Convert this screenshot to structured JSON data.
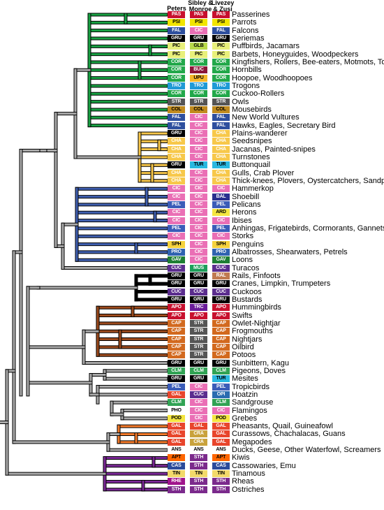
{
  "headers": [
    "Peters",
    "Sibley & Monroe",
    "Livezey & Zusi"
  ],
  "palette": {
    "PAS": [
      "#c8102e",
      "#fff"
    ],
    "PSI": [
      "#f2e500",
      "#000"
    ],
    "FAL": [
      "#2e4f9e",
      "#fff"
    ],
    "GRU": [
      "#000000",
      "#fff"
    ],
    "CIC": [
      "#ea6fb5",
      "#fff"
    ],
    "PIC": [
      "#e8f07a",
      "#000"
    ],
    "GLB": [
      "#b8d94a",
      "#000"
    ],
    "COR": [
      "#22a84a",
      "#fff"
    ],
    "BUC": [
      "#8b1538",
      "#fff"
    ],
    "UPU": [
      "#f4b72a",
      "#000"
    ],
    "TRO": [
      "#1f9ad6",
      "#fff"
    ],
    "STR": [
      "#555555",
      "#fff"
    ],
    "COL": [
      "#c08a1e",
      "#000"
    ],
    "CHA": [
      "#f7c84a",
      "#fff"
    ],
    "TUR": [
      "#29b8e0",
      "#000"
    ],
    "BAL": [
      "#2a2f8f",
      "#fff"
    ],
    "ARD": [
      "#f5e640",
      "#000"
    ],
    "SPH": [
      "#f5d23c",
      "#000"
    ],
    "PRO": [
      "#2f62b0",
      "#fff"
    ],
    "GAV": [
      "#1e7e34",
      "#fff"
    ],
    "CUC": [
      "#5b2d8e",
      "#fff"
    ],
    "MUS": [
      "#1d9e5a",
      "#fff"
    ],
    "RAL": [
      "#c07a50",
      "#fff"
    ],
    "APO": [
      "#c8102e",
      "#fff"
    ],
    "TRC": [
      "#6a1b9a",
      "#fff"
    ],
    "CAP": [
      "#d2691e",
      "#fff"
    ],
    "CLM": [
      "#31a354",
      "#fff"
    ],
    "PEL": [
      "#3b5cb8",
      "#fff"
    ],
    "OPI": [
      "#2b6cb0",
      "#fff"
    ],
    "GAL": [
      "#e8452c",
      "#fff"
    ],
    "PHO": [
      "#ffffff",
      "#000"
    ],
    "POD": [
      "#f5e640",
      "#000"
    ],
    "CRA": [
      "#c9a23c",
      "#fff"
    ],
    "ANS": [
      "#ffffff",
      "#000"
    ],
    "APT": [
      "#ff6600",
      "#000"
    ],
    "CAS": [
      "#2b4b9b",
      "#fff"
    ],
    "STH": [
      "#7b2a8c",
      "#fff"
    ],
    "TIN": [
      "#f2d96a",
      "#000"
    ],
    "RHE": [
      "#a0148c",
      "#fff"
    ]
  },
  "clade_colors": {
    "green": "#18a142",
    "yellow": "#f8c74a",
    "blue": "#3f5fb0",
    "black": "#000000",
    "brown": "#9c4a1c",
    "orange": "#f47a2a",
    "purple": "#7b2896",
    "gray": "#a9a9a9"
  },
  "taxa": [
    {
      "name": "Passerines",
      "codes": [
        "PAS",
        "PAS",
        "PAS"
      ]
    },
    {
      "name": "Parrots",
      "codes": [
        "PSI",
        "PSI",
        "PSI"
      ]
    },
    {
      "name": "Falcons",
      "codes": [
        "FAL",
        "CIC",
        "FAL"
      ]
    },
    {
      "name": "Seriemas",
      "codes": [
        "GRU",
        "GRU",
        "GRU"
      ]
    },
    {
      "name": "Puffbirds, Jacamars",
      "codes": [
        "PIC",
        "GLB",
        "PIC"
      ]
    },
    {
      "name": "Barbets, Honeyguides, Woodpeckers",
      "codes": [
        "PIC",
        "PIC",
        "PIC"
      ]
    },
    {
      "name": "Kingfishers, Rollers, Bee-eaters, Motmots, Todies",
      "codes": [
        "COR",
        "COR",
        "COR"
      ]
    },
    {
      "name": "Hornbills",
      "codes": [
        "COR",
        "BUC",
        "COR"
      ]
    },
    {
      "name": "Hoopoe, Woodhoopoes",
      "codes": [
        "COR",
        "UPU",
        "COR"
      ]
    },
    {
      "name": "Trogons",
      "codes": [
        "TRO",
        "TRO",
        "TRO"
      ]
    },
    {
      "name": "Cuckoo-Rollers",
      "codes": [
        "COR",
        "COR",
        "COR"
      ]
    },
    {
      "name": "Owls",
      "codes": [
        "STR",
        "STR",
        "STR"
      ]
    },
    {
      "name": "Mousebirds",
      "codes": [
        "COL",
        "COL",
        "COL"
      ]
    },
    {
      "name": "New World Vultures",
      "codes": [
        "FAL",
        "CIC",
        "FAL"
      ]
    },
    {
      "name": "Hawks, Eagles, Secretary Bird",
      "codes": [
        "FAL",
        "CIC",
        "FAL"
      ]
    },
    {
      "name": "Plains-wanderer",
      "codes": [
        "GRU",
        "CIC",
        "CHA"
      ]
    },
    {
      "name": "Seedsnipes",
      "codes": [
        "CHA",
        "CIC",
        "CHA"
      ]
    },
    {
      "name": "Jacanas, Painted-snipes",
      "codes": [
        "CHA",
        "CIC",
        "CHA"
      ]
    },
    {
      "name": "Turnstones",
      "codes": [
        "CHA",
        "CIC",
        "CHA"
      ]
    },
    {
      "name": "Buttonquail",
      "codes": [
        "GRU",
        "TUR",
        "TUR"
      ]
    },
    {
      "name": "Gulls, Crab Plover",
      "codes": [
        "CHA",
        "CIC",
        "CHA"
      ]
    },
    {
      "name": "Thick-knees, Plovers, Oystercatchers, Sandpipers",
      "codes": [
        "CHA",
        "CIC",
        "CHA"
      ]
    },
    {
      "name": "Hammerkop",
      "codes": [
        "CIC",
        "CIC",
        "CIC"
      ]
    },
    {
      "name": "Shoebill",
      "codes": [
        "CIC",
        "CIC",
        "BAL"
      ]
    },
    {
      "name": "Pelicans",
      "codes": [
        "PEL",
        "CIC",
        "PEL"
      ]
    },
    {
      "name": "Herons",
      "codes": [
        "CIC",
        "CIC",
        "ARD"
      ]
    },
    {
      "name": "Ibises",
      "codes": [
        "CIC",
        "CIC",
        "CIC"
      ]
    },
    {
      "name": "Anhingas, Frigatebirds, Cormorants, Gannets",
      "codes": [
        "PEL",
        "CIC",
        "PEL"
      ]
    },
    {
      "name": "Storks",
      "codes": [
        "CIC",
        "CIC",
        "CIC"
      ]
    },
    {
      "name": "Penguins",
      "codes": [
        "SPH",
        "CIC",
        "SPH"
      ]
    },
    {
      "name": "Albatrosses, Shearwaters, Petrels",
      "codes": [
        "PRO",
        "CIC",
        "PRO"
      ]
    },
    {
      "name": "Loons",
      "codes": [
        "GAV",
        "CIC",
        "GAV"
      ]
    },
    {
      "name": "Turacos",
      "codes": [
        "CUC",
        "MUS",
        "CUC"
      ]
    },
    {
      "name": "Rails, Finfoots",
      "codes": [
        "GRU",
        "GRU",
        "RAL"
      ]
    },
    {
      "name": "Cranes, Limpkin, Trumpeters",
      "codes": [
        "GRU",
        "GRU",
        "GRU"
      ]
    },
    {
      "name": "Cuckoos",
      "codes": [
        "CUC",
        "CUC",
        "CUC"
      ]
    },
    {
      "name": "Bustards",
      "codes": [
        "GRU",
        "GRU",
        "GRU"
      ]
    },
    {
      "name": "Hummingbirds",
      "codes": [
        "APO",
        "TRC",
        "APO"
      ]
    },
    {
      "name": "Swifts",
      "codes": [
        "APO",
        "APO",
        "APO"
      ]
    },
    {
      "name": "Owlet-Nightjar",
      "codes": [
        "CAP",
        "STR",
        "CAP"
      ]
    },
    {
      "name": "Frogmouths",
      "codes": [
        "CAP",
        "STR",
        "CAP"
      ]
    },
    {
      "name": "Nightjars",
      "codes": [
        "CAP",
        "STR",
        "CAP"
      ]
    },
    {
      "name": "Oilbird",
      "codes": [
        "CAP",
        "STR",
        "CAP"
      ]
    },
    {
      "name": "Potoos",
      "codes": [
        "CAP",
        "STR",
        "CAP"
      ]
    },
    {
      "name": "Sunbittern, Kagu",
      "codes": [
        "GRU",
        "GRU",
        "GRU"
      ]
    },
    {
      "name": "Pigeons, Doves",
      "codes": [
        "CLM",
        "CLM",
        "CLM"
      ]
    },
    {
      "name": "Mesites",
      "codes": [
        "GRU",
        "GRU",
        "TUR"
      ]
    },
    {
      "name": "Tropicbirds",
      "codes": [
        "PEL",
        "CIC",
        "PEL"
      ]
    },
    {
      "name": "Hoatzin",
      "codes": [
        "GAL",
        "CUC",
        "OPI"
      ]
    },
    {
      "name": "Sandgrouse",
      "codes": [
        "CLM",
        "CIC",
        "CLM"
      ]
    },
    {
      "name": "Flamingos",
      "codes": [
        "PHO",
        "CIC",
        "CIC"
      ]
    },
    {
      "name": "Grebes",
      "codes": [
        "POD",
        "CIC",
        "POD"
      ]
    },
    {
      "name": "Pheasants, Quail, Guineafowl",
      "codes": [
        "GAL",
        "GAL",
        "GAL"
      ]
    },
    {
      "name": "Curassows, Chachalacas, Guans",
      "codes": [
        "GAL",
        "CRA",
        "GAL"
      ]
    },
    {
      "name": "Megapodes",
      "codes": [
        "GAL",
        "CRA",
        "GAL"
      ]
    },
    {
      "name": "Ducks, Geese, Other Waterfowl, Screamers",
      "codes": [
        "ANS",
        "ANS",
        "ANS"
      ]
    },
    {
      "name": "Kiwis",
      "codes": [
        "APT",
        "STH",
        "APT"
      ]
    },
    {
      "name": "Cassowaries, Emu",
      "codes": [
        "CAS",
        "STH",
        "CAS"
      ]
    },
    {
      "name": "Tinamous",
      "codes": [
        "TIN",
        "TIN",
        "TIN"
      ]
    },
    {
      "name": "Rheas",
      "codes": [
        "RHE",
        "STH",
        "STH"
      ]
    },
    {
      "name": "Ostriches",
      "codes": [
        "STH",
        "STH",
        "STH"
      ]
    }
  ]
}
